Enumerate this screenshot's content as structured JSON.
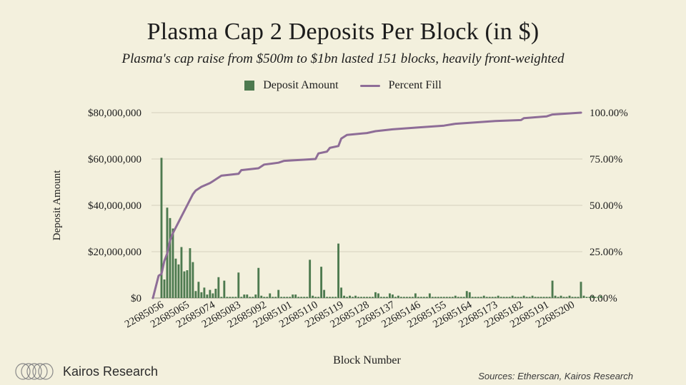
{
  "brand": {
    "name": "Kairos Research",
    "logo_icon": "concentric-ellipses-logo"
  },
  "footer": {
    "sources": "Sources: Etherscan, Kairos Research"
  },
  "colors": {
    "bar": "#4d7a4f",
    "line": "#8e6d97",
    "grid": "#d5d1bd",
    "background": "#f3f0dd"
  },
  "chart_data": {
    "type": "bar+line",
    "title": "Plasma Cap 2 Deposits Per Block (in $)",
    "subtitle": "Plasma's cap raise from $500m to $1bn lasted 151 blocks, heavily front-weighted",
    "xlabel": "Block Number",
    "ylabel": "Deposit Amount",
    "y2label": "",
    "grid": true,
    "legend_position": "top-center",
    "legend": [
      "Deposit Amount",
      "Percent Fill"
    ],
    "x_start": 22685053,
    "x_end": 22685203,
    "tick_labels": [
      "22685056",
      "22685065",
      "22685074",
      "22685083",
      "22685092",
      "22685101",
      "22685110",
      "22685119",
      "22685128",
      "22685137",
      "22685146",
      "22685155",
      "22685164",
      "22685173",
      "22685182",
      "22685191",
      "22685200"
    ],
    "ylim": [
      0,
      80000000
    ],
    "y_ticks": [
      0,
      20000000,
      40000000,
      60000000,
      80000000
    ],
    "y_tick_labels": [
      "$0",
      "$20,000,000",
      "$40,000,000",
      "$60,000,000",
      "$80,000,000"
    ],
    "y2lim": [
      0,
      100
    ],
    "y2_ticks": [
      0,
      25,
      50,
      75,
      100
    ],
    "y2_tick_labels": [
      "0.00%",
      "25.00%",
      "50.00%",
      "75.00%",
      "100.00%"
    ],
    "series": [
      {
        "name": "Deposit Amount",
        "kind": "bar",
        "values": [
          0,
          0,
          0,
          60500000,
          8000000,
          39000000,
          34500000,
          30000000,
          17000000,
          14500000,
          22000000,
          11500000,
          12000000,
          21500000,
          15500000,
          3000000,
          7000000,
          2500000,
          4500000,
          1500000,
          3500000,
          2000000,
          4000000,
          9000000,
          500000,
          7500000,
          500000,
          500000,
          500000,
          500000,
          11000000,
          500000,
          1500000,
          1500000,
          500000,
          500000,
          1500000,
          13000000,
          1000000,
          500000,
          500000,
          2000000,
          500000,
          500000,
          3500000,
          500000,
          500000,
          500000,
          500000,
          1500000,
          1500000,
          500000,
          500000,
          500000,
          500000,
          16500000,
          1000000,
          500000,
          500000,
          13500000,
          3500000,
          500000,
          500000,
          500000,
          500000,
          23500000,
          4500000,
          1000000,
          500000,
          1000000,
          500000,
          1000000,
          500000,
          500000,
          500000,
          500000,
          500000,
          500000,
          2500000,
          2000000,
          500000,
          500000,
          500000,
          2000000,
          1500000,
          500000,
          1000000,
          500000,
          500000,
          500000,
          500000,
          500000,
          2000000,
          500000,
          500000,
          500000,
          500000,
          2000000,
          500000,
          500000,
          500000,
          500000,
          500000,
          500000,
          500000,
          500000,
          1000000,
          500000,
          500000,
          500000,
          3000000,
          2500000,
          500000,
          500000,
          500000,
          500000,
          1000000,
          500000,
          500000,
          500000,
          500000,
          1000000,
          500000,
          500000,
          500000,
          500000,
          1000000,
          500000,
          500000,
          500000,
          1000000,
          500000,
          500000,
          1000000,
          500000,
          500000,
          500000,
          500000,
          500000,
          500000,
          7500000,
          1000000,
          500000,
          1000000,
          500000,
          500000,
          1000000,
          500000,
          500000,
          500000,
          7000000,
          1000000,
          500000,
          500000,
          1000000,
          500000,
          500000,
          1000000
        ]
      },
      {
        "name": "Percent Fill",
        "kind": "line",
        "points": [
          [
            22685053,
            0
          ],
          [
            22685055,
            12
          ],
          [
            22685056,
            13
          ],
          [
            22685057,
            20
          ],
          [
            22685058,
            24
          ],
          [
            22685059,
            31
          ],
          [
            22685060,
            35
          ],
          [
            22685061,
            38
          ],
          [
            22685062,
            41
          ],
          [
            22685063,
            44
          ],
          [
            22685064,
            47
          ],
          [
            22685065,
            50
          ],
          [
            22685066,
            53
          ],
          [
            22685067,
            56
          ],
          [
            22685068,
            58
          ],
          [
            22685070,
            60
          ],
          [
            22685073,
            62
          ],
          [
            22685074,
            63
          ],
          [
            22685076,
            65
          ],
          [
            22685077,
            66
          ],
          [
            22685083,
            67
          ],
          [
            22685084,
            69
          ],
          [
            22685090,
            70
          ],
          [
            22685092,
            72
          ],
          [
            22685097,
            73
          ],
          [
            22685099,
            74
          ],
          [
            22685110,
            75
          ],
          [
            22685111,
            78
          ],
          [
            22685114,
            79
          ],
          [
            22685115,
            81
          ],
          [
            22685118,
            82
          ],
          [
            22685119,
            86
          ],
          [
            22685121,
            88
          ],
          [
            22685128,
            89
          ],
          [
            22685131,
            90
          ],
          [
            22685137,
            91
          ],
          [
            22685146,
            92
          ],
          [
            22685155,
            93
          ],
          [
            22685159,
            94
          ],
          [
            22685164,
            94.5
          ],
          [
            22685173,
            95.5
          ],
          [
            22685182,
            96
          ],
          [
            22685183,
            97
          ],
          [
            22685191,
            98
          ],
          [
            22685193,
            99
          ],
          [
            22685203,
            100
          ]
        ]
      }
    ]
  }
}
